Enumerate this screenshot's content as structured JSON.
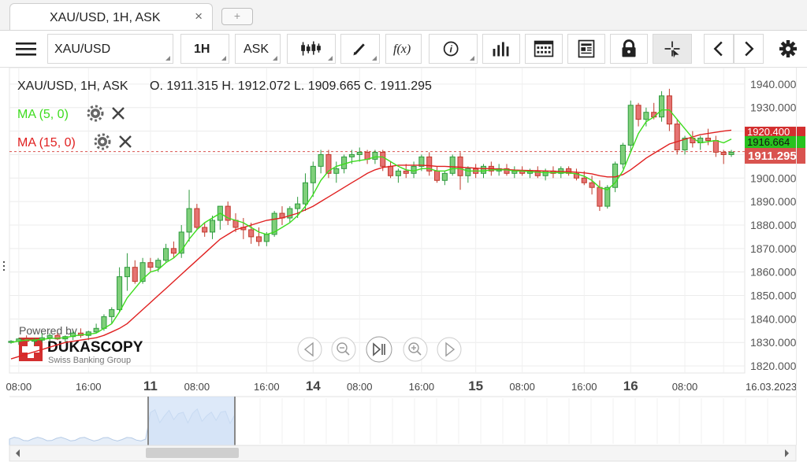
{
  "tab": {
    "title": "XAU/USD, 1H, ASK",
    "close": "×",
    "add": "+"
  },
  "toolbar": {
    "instrument": "XAU/USD",
    "period": "1H",
    "side": "ASK",
    "icons": [
      "menu-icon",
      "candles-icon",
      "pencil-icon",
      "function-icon",
      "info-icon",
      "bar-chart-icon",
      "calendar-icon",
      "news-icon",
      "lock-icon",
      "crosshair-icon",
      "chevron-left-icon",
      "chevron-right-icon",
      "gear-icon"
    ],
    "function_label": "f(x)"
  },
  "chart": {
    "header": "XAU/USD, 1H, ASK",
    "ohlc": "O. 1911.315 H. 1912.072 L. 1909.665 C. 1911.295",
    "indicators": [
      {
        "label": "MA (5, 0)",
        "color": "#3ddc1e"
      },
      {
        "label": "MA (15, 0)",
        "color": "#e02020"
      }
    ],
    "price_current": "1911.295",
    "price_ma5": "1916.664",
    "price_ma15": "1920.400",
    "y_ticks": [
      "1940.000",
      "1930.000",
      "1920.000",
      "1910.000",
      "1900.000",
      "1890.000",
      "1880.000",
      "1870.000",
      "1860.000",
      "1850.000",
      "1840.000",
      "1830.000",
      "1820.000"
    ],
    "x_ticks": [
      "08:00",
      "16:00",
      "11",
      "08:00",
      "16:00",
      "14",
      "08:00",
      "16:00",
      "15",
      "08:00",
      "16:00",
      "16",
      "08:00",
      "16.03.2023"
    ],
    "watermark": {
      "line1": "Powered by",
      "brand": "DUKASCOPY",
      "sub": "Swiss Banking Group"
    },
    "colors": {
      "up": "#2e9a3e",
      "up_fill": "#7fcf7a",
      "down": "#c0392b",
      "down_fill": "#e57373",
      "ma5": "#3ddc1e",
      "ma15": "#e02020"
    }
  },
  "chart_data": {
    "type": "candlestick",
    "y_range": [
      1817,
      1947
    ],
    "candles_ohlc": [
      [
        1830,
        1831,
        1829.5,
        1830.5
      ],
      [
        1830.5,
        1832,
        1829,
        1831.5
      ],
      [
        1831.5,
        1833,
        1830,
        1830.5
      ],
      [
        1830.5,
        1832,
        1829,
        1831
      ],
      [
        1831,
        1834,
        1830,
        1832
      ],
      [
        1832,
        1834,
        1830.5,
        1833
      ],
      [
        1833,
        1834,
        1831,
        1831.5
      ],
      [
        1831.5,
        1833,
        1830,
        1832.5
      ],
      [
        1832.5,
        1835,
        1831,
        1834
      ],
      [
        1834,
        1836,
        1832,
        1833
      ],
      [
        1833,
        1835,
        1831,
        1834.5
      ],
      [
        1834.5,
        1838,
        1834,
        1836
      ],
      [
        1836,
        1842,
        1835,
        1841
      ],
      [
        1841,
        1845,
        1838,
        1844
      ],
      [
        1844,
        1862,
        1843,
        1858
      ],
      [
        1858,
        1868,
        1852,
        1862
      ],
      [
        1862,
        1865,
        1855,
        1856
      ],
      [
        1856,
        1866,
        1855,
        1864
      ],
      [
        1864,
        1866,
        1860,
        1862
      ],
      [
        1862,
        1866,
        1860,
        1865
      ],
      [
        1865,
        1872,
        1864,
        1870
      ],
      [
        1870,
        1873,
        1866,
        1868
      ],
      [
        1868,
        1880,
        1866,
        1877
      ],
      [
        1877,
        1895,
        1873,
        1887
      ],
      [
        1887,
        1889,
        1878,
        1879
      ],
      [
        1879,
        1881,
        1875,
        1877
      ],
      [
        1877,
        1884,
        1874,
        1882
      ],
      [
        1882,
        1888,
        1878,
        1888
      ],
      [
        1888,
        1890,
        1880,
        1882
      ],
      [
        1882,
        1885,
        1877,
        1879
      ],
      [
        1879,
        1883,
        1874,
        1878
      ],
      [
        1878,
        1881,
        1872,
        1875
      ],
      [
        1875,
        1879,
        1871,
        1873
      ],
      [
        1873,
        1877,
        1871,
        1876
      ],
      [
        1876,
        1886,
        1875,
        1885
      ],
      [
        1885,
        1888,
        1880,
        1883
      ],
      [
        1883,
        1888,
        1881,
        1887
      ],
      [
        1887,
        1892,
        1883,
        1889
      ],
      [
        1889,
        1902,
        1886,
        1898
      ],
      [
        1898,
        1907,
        1892,
        1905
      ],
      [
        1905,
        1912,
        1902,
        1910
      ],
      [
        1910,
        1912,
        1900,
        1902
      ],
      [
        1902,
        1907,
        1898,
        1904
      ],
      [
        1904,
        1910,
        1902,
        1909
      ],
      [
        1909,
        1912,
        1906,
        1910
      ],
      [
        1910,
        1913,
        1907,
        1911
      ],
      [
        1911,
        1912,
        1906,
        1908
      ],
      [
        1908,
        1912,
        1906,
        1911
      ],
      [
        1911,
        1912,
        1903,
        1905
      ],
      [
        1905,
        1907,
        1900,
        1901
      ],
      [
        1901,
        1904,
        1898,
        1903
      ],
      [
        1903,
        1906,
        1900,
        1902
      ],
      [
        1902,
        1907,
        1900,
        1905
      ],
      [
        1905,
        1910,
        1903,
        1909
      ],
      [
        1909,
        1911,
        1901,
        1903
      ],
      [
        1903,
        1905,
        1898,
        1899
      ],
      [
        1899,
        1903,
        1897,
        1902
      ],
      [
        1902,
        1910,
        1901,
        1909
      ],
      [
        1909,
        1911,
        1895,
        1901
      ],
      [
        1901,
        1905,
        1898,
        1904
      ],
      [
        1904,
        1906,
        1900,
        1902
      ],
      [
        1902,
        1906,
        1900,
        1905
      ],
      [
        1905,
        1907,
        1901,
        1903
      ],
      [
        1903,
        1906,
        1901,
        1904
      ],
      [
        1904,
        1906,
        1901,
        1902
      ],
      [
        1902,
        1905,
        1900,
        1903
      ],
      [
        1903,
        1905,
        1901,
        1902
      ],
      [
        1902,
        1904,
        1900,
        1903
      ],
      [
        1903,
        1905,
        1900,
        1901
      ],
      [
        1901,
        1904,
        1899,
        1903
      ],
      [
        1903,
        1905,
        1900,
        1902
      ],
      [
        1902,
        1905,
        1900,
        1904
      ],
      [
        1904,
        1905,
        1901,
        1902
      ],
      [
        1902,
        1904,
        1899,
        1900
      ],
      [
        1900,
        1903,
        1897,
        1898
      ],
      [
        1898,
        1901,
        1893,
        1896
      ],
      [
        1896,
        1899,
        1886,
        1888
      ],
      [
        1888,
        1897,
        1887,
        1896
      ],
      [
        1896,
        1907,
        1894,
        1906
      ],
      [
        1906,
        1915,
        1904,
        1914
      ],
      [
        1914,
        1933,
        1911,
        1931
      ],
      [
        1931,
        1932,
        1922,
        1925
      ],
      [
        1925,
        1930,
        1922,
        1928
      ],
      [
        1928,
        1932,
        1925,
        1926
      ],
      [
        1926,
        1937,
        1924,
        1935
      ],
      [
        1935,
        1938,
        1920,
        1923
      ],
      [
        1923,
        1925,
        1910,
        1912
      ],
      [
        1912,
        1918,
        1910,
        1917
      ],
      [
        1917,
        1920,
        1913,
        1915
      ],
      [
        1915,
        1918,
        1912,
        1917
      ],
      [
        1917,
        1921,
        1914,
        1916
      ],
      [
        1916,
        1918,
        1909,
        1911
      ],
      [
        1911,
        1912,
        1906,
        1910
      ],
      [
        1910,
        1912,
        1909,
        1911
      ]
    ],
    "ma5": [
      1830,
      1830.6,
      1831,
      1831,
      1831.3,
      1831.7,
      1831.8,
      1832,
      1832.7,
      1833.2,
      1833.5,
      1834,
      1836,
      1838,
      1843,
      1849,
      1853,
      1857,
      1860,
      1861,
      1864,
      1866,
      1869,
      1874,
      1878,
      1881,
      1883,
      1885,
      1883,
      1882,
      1881,
      1879,
      1877,
      1876,
      1877,
      1879,
      1881,
      1884,
      1888,
      1893,
      1899,
      1903,
      1905,
      1906,
      1907,
      1907.5,
      1908,
      1909,
      1909,
      1907,
      1905,
      1903.5,
      1903,
      1904,
      1904,
      1903,
      1903,
      1904,
      1904,
      1903,
      1903,
      1903,
      1903.5,
      1903.5,
      1903.5,
      1903,
      1903,
      1902.7,
      1902.5,
      1902.3,
      1902.3,
      1902.3,
      1902.2,
      1901.8,
      1900.8,
      1899,
      1896,
      1895,
      1898,
      1903,
      1911,
      1919,
      1924,
      1926,
      1929,
      1929,
      1925,
      1921,
      1917,
      1915,
      1915.5,
      1916,
      1915,
      1916.6
    ],
    "ma15": [
      1823,
      1824,
      1825,
      1826,
      1827,
      1828,
      1829,
      1830,
      1830.5,
      1831,
      1831.5,
      1832,
      1833,
      1834.5,
      1836,
      1838,
      1841,
      1844,
      1847,
      1850,
      1853,
      1856,
      1859,
      1862,
      1865,
      1868,
      1871,
      1874,
      1876,
      1878,
      1879,
      1880,
      1881,
      1882,
      1882.5,
      1883,
      1884,
      1885,
      1886.5,
      1888,
      1890,
      1892,
      1894,
      1896,
      1898,
      1900,
      1902,
      1903.5,
      1904.5,
      1905,
      1905.5,
      1905.5,
      1905.5,
      1905.5,
      1905.3,
      1905,
      1905,
      1904.8,
      1904.6,
      1904.4,
      1904.2,
      1904,
      1904,
      1903.8,
      1903.6,
      1903.4,
      1903.3,
      1903.2,
      1903.1,
      1903,
      1902.9,
      1902.8,
      1902.7,
      1902.5,
      1902.2,
      1901.8,
      1901,
      1900.5,
      1900.5,
      1901.5,
      1903.5,
      1906,
      1908.5,
      1910.5,
      1912.5,
      1914.5,
      1915.5,
      1916.5,
      1917.5,
      1918.5,
      1919,
      1919.5,
      1920,
      1920.4
    ],
    "last_close": 1911.295
  }
}
